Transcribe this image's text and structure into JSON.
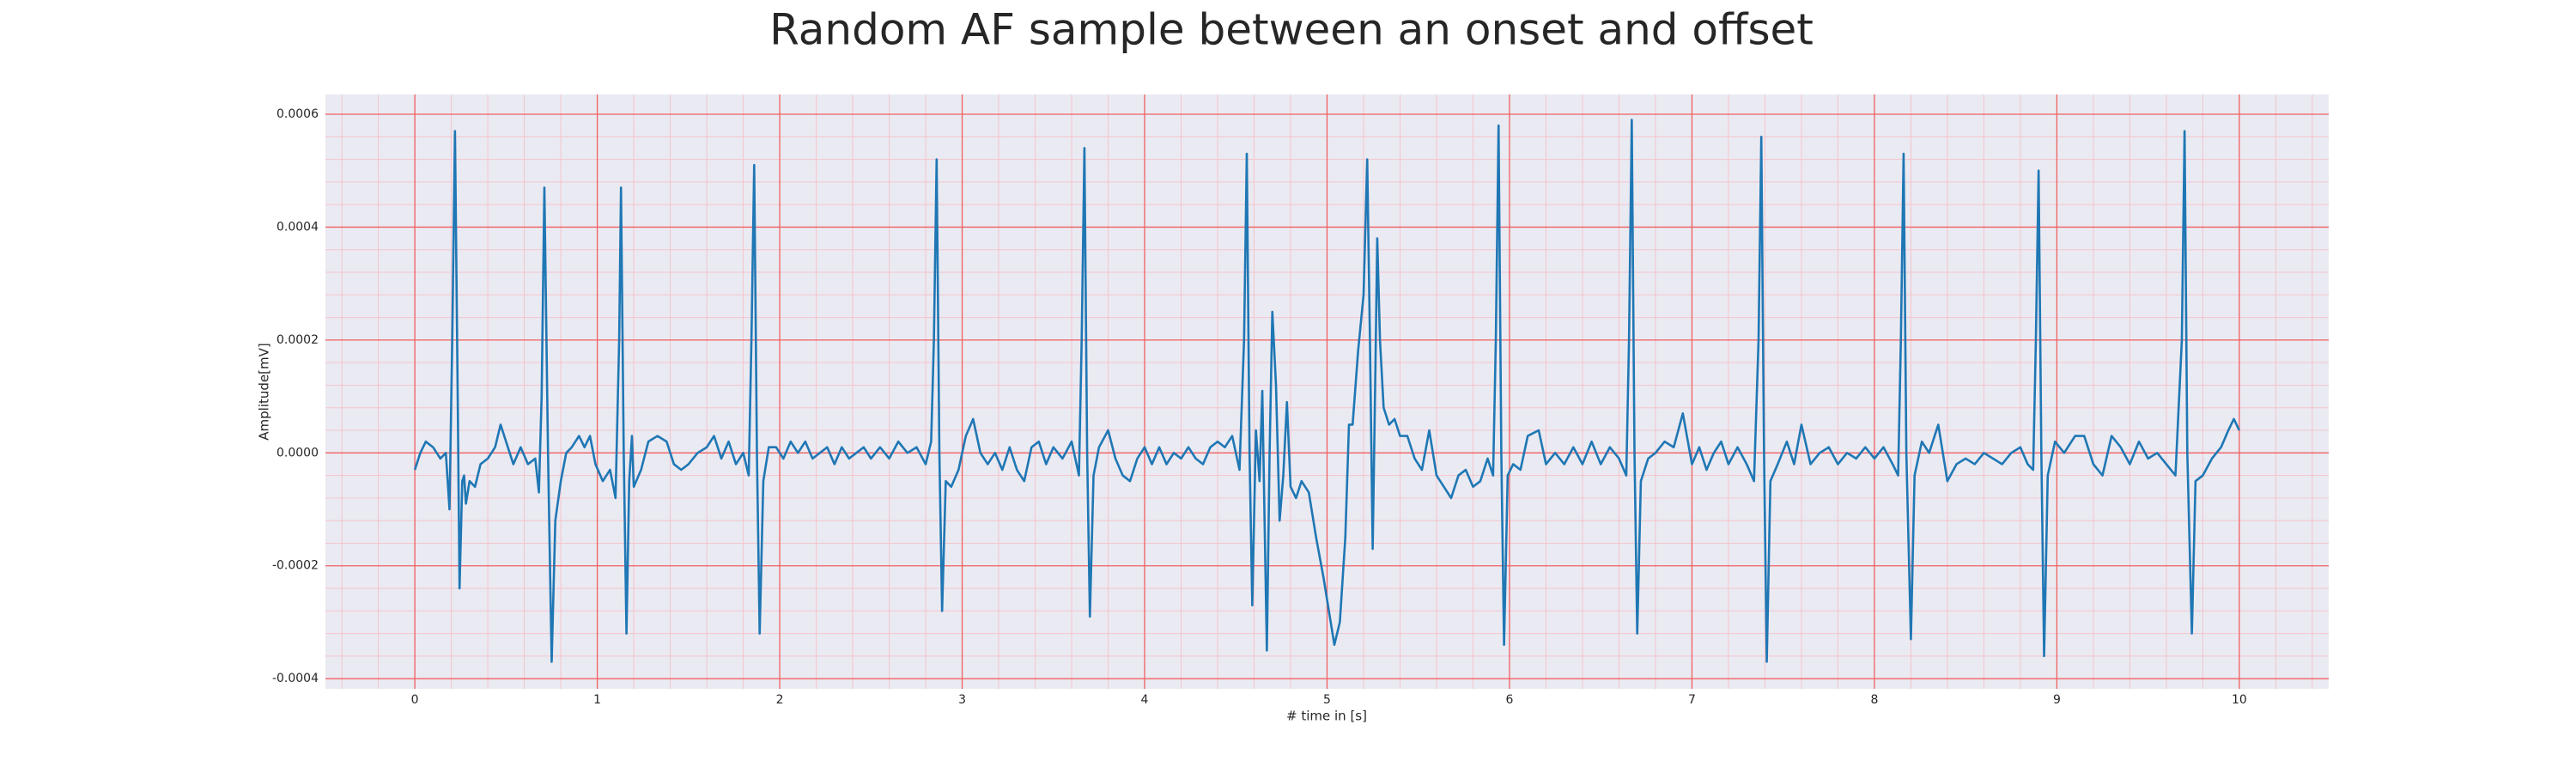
{
  "chart_data": {
    "type": "line",
    "title": "Random AF sample between an onset and offset",
    "xlabel": "# time in [s]",
    "ylabel": "Amplitude[mV]",
    "xlim": [
      -0.49,
      10.49
    ],
    "ylim": [
      -0.000418,
      0.000635
    ],
    "xticks": [
      0,
      1,
      2,
      3,
      4,
      5,
      6,
      7,
      8,
      9,
      10
    ],
    "yticks": [
      -0.0004,
      -0.0002,
      {
        "value": 0,
        "label": "0.0000"
      },
      0.0002,
      0.0004,
      0.0006
    ],
    "xminorticks": [
      -0.4,
      -0.2,
      0.2,
      0.4,
      0.6,
      0.8,
      1.2,
      1.4,
      1.6,
      1.8,
      2.2,
      2.4,
      2.6,
      2.8,
      3.2,
      3.4,
      3.6,
      3.8,
      4.2,
      4.4,
      4.6,
      4.8,
      5.2,
      5.4,
      5.6,
      5.8,
      6.2,
      6.4,
      6.6,
      6.8,
      7.2,
      7.4,
      7.6,
      7.8,
      8.2,
      8.4,
      8.6,
      8.8,
      9.2,
      9.4,
      9.6,
      9.8,
      10.2,
      10.4
    ],
    "yminorticks": [
      -0.00036,
      -0.00032,
      -0.00028,
      -0.00024,
      -0.00016,
      -0.00012,
      -8e-05,
      -4e-05,
      4e-05,
      8e-05,
      0.00012,
      0.00016,
      0.00024,
      0.00028,
      0.00032,
      0.00036,
      0.00044,
      0.00048,
      0.00052,
      0.00056
    ],
    "grid": true,
    "grid_color": "#f06060",
    "minor_grid_color": "#f4c4cc",
    "background": "#eaeaf2",
    "color": "#1f77b4",
    "x": [
      0,
      0.03,
      0.06,
      0.1,
      0.14,
      0.17,
      0.19,
      0.205,
      0.22,
      0.235,
      0.245,
      0.26,
      0.27,
      0.28,
      0.3,
      0.33,
      0.36,
      0.4,
      0.44,
      0.47,
      0.5,
      0.54,
      0.58,
      0.62,
      0.66,
      0.68,
      0.695,
      0.71,
      0.73,
      0.75,
      0.77,
      0.8,
      0.83,
      0.86,
      0.9,
      0.93,
      0.96,
      0.99,
      1.03,
      1.07,
      1.1,
      1.12,
      1.13,
      1.145,
      1.16,
      1.175,
      1.19,
      1.2,
      1.24,
      1.28,
      1.33,
      1.38,
      1.42,
      1.46,
      1.5,
      1.55,
      1.6,
      1.64,
      1.68,
      1.72,
      1.76,
      1.8,
      1.83,
      1.845,
      1.86,
      1.875,
      1.89,
      1.91,
      1.94,
      1.98,
      2.02,
      2.06,
      2.1,
      2.14,
      2.18,
      2.22,
      2.26,
      2.3,
      2.34,
      2.38,
      2.42,
      2.46,
      2.5,
      2.55,
      2.6,
      2.65,
      2.7,
      2.75,
      2.8,
      2.83,
      2.845,
      2.86,
      2.875,
      2.89,
      2.91,
      2.94,
      2.98,
      3.02,
      3.06,
      3.1,
      3.14,
      3.18,
      3.22,
      3.26,
      3.3,
      3.34,
      3.38,
      3.42,
      3.46,
      3.5,
      3.55,
      3.6,
      3.64,
      3.655,
      3.67,
      3.685,
      3.7,
      3.72,
      3.75,
      3.8,
      3.84,
      3.88,
      3.92,
      3.96,
      4.0,
      4.04,
      4.08,
      4.12,
      4.16,
      4.2,
      4.24,
      4.28,
      4.32,
      4.36,
      4.4,
      4.44,
      4.48,
      4.52,
      4.545,
      4.56,
      4.575,
      4.59,
      4.61,
      4.63,
      4.645,
      4.67,
      4.685,
      4.7,
      4.72,
      4.74,
      4.76,
      4.78,
      4.8,
      4.83,
      4.86,
      4.9,
      4.94,
      4.98,
      5.01,
      5.04,
      5.07,
      5.1,
      5.12,
      5.14,
      5.17,
      5.2,
      5.22,
      5.235,
      5.25,
      5.265,
      5.275,
      5.29,
      5.31,
      5.34,
      5.37,
      5.4,
      5.44,
      5.48,
      5.52,
      5.56,
      5.6,
      5.64,
      5.68,
      5.72,
      5.76,
      5.8,
      5.84,
      5.88,
      5.91,
      5.925,
      5.94,
      5.955,
      5.97,
      5.99,
      6.02,
      6.06,
      6.1,
      6.16,
      6.2,
      6.25,
      6.3,
      6.35,
      6.4,
      6.45,
      6.5,
      6.55,
      6.6,
      6.64,
      6.655,
      6.67,
      6.685,
      6.7,
      6.72,
      6.76,
      6.8,
      6.85,
      6.9,
      6.95,
      7.0,
      7.04,
      7.08,
      7.12,
      7.16,
      7.2,
      7.25,
      7.3,
      7.34,
      7.365,
      7.38,
      7.395,
      7.41,
      7.43,
      7.47,
      7.52,
      7.56,
      7.6,
      7.65,
      7.7,
      7.75,
      7.8,
      7.85,
      7.9,
      7.95,
      8.0,
      8.05,
      8.1,
      8.13,
      8.145,
      8.16,
      8.175,
      8.2,
      8.22,
      8.26,
      8.3,
      8.35,
      8.4,
      8.45,
      8.5,
      8.55,
      8.6,
      8.65,
      8.7,
      8.75,
      8.8,
      8.84,
      8.87,
      8.885,
      8.9,
      8.915,
      8.93,
      8.95,
      8.99,
      9.04,
      9.1,
      9.15,
      9.2,
      9.25,
      9.3,
      9.35,
      9.4,
      9.45,
      9.5,
      9.55,
      9.6,
      9.65,
      9.685,
      9.7,
      9.715,
      9.74,
      9.76,
      9.8,
      9.85,
      9.9,
      9.94,
      9.97,
      10.0
    ],
    "values": [
      -3e-05,
      0,
      2e-05,
      1e-05,
      -1e-05,
      0,
      -0.0001,
      0.0002,
      0.00057,
      0.0001,
      -0.00024,
      -5e-05,
      -4e-05,
      -9e-05,
      -5e-05,
      -6e-05,
      -2e-05,
      -1e-05,
      1e-05,
      5e-05,
      2e-05,
      -2e-05,
      1e-05,
      -2e-05,
      -1e-05,
      -7e-05,
      0.0001,
      0.00047,
      0,
      -0.00037,
      -0.00012,
      -5e-05,
      0,
      1e-05,
      3e-05,
      1e-05,
      3e-05,
      -2e-05,
      -5e-05,
      -3e-05,
      -8e-05,
      0.0002,
      0.00047,
      0,
      -0.00032,
      -5e-05,
      3e-05,
      -6e-05,
      -3e-05,
      2e-05,
      3e-05,
      2e-05,
      -2e-05,
      -3e-05,
      -2e-05,
      0,
      1e-05,
      3e-05,
      -1e-05,
      2e-05,
      -2e-05,
      0,
      -4e-05,
      0.0002,
      0.00051,
      0,
      -0.00032,
      -5e-05,
      1e-05,
      1e-05,
      -1e-05,
      2e-05,
      0,
      2e-05,
      -1e-05,
      0,
      1e-05,
      -2e-05,
      1e-05,
      -1e-05,
      0,
      1e-05,
      -1e-05,
      1e-05,
      -1e-05,
      2e-05,
      0,
      1e-05,
      -2e-05,
      2e-05,
      0.0002,
      0.00052,
      0,
      -0.00028,
      -5e-05,
      -6e-05,
      -3e-05,
      3e-05,
      6e-05,
      0,
      -2e-05,
      0,
      -3e-05,
      1e-05,
      -3e-05,
      -5e-05,
      1e-05,
      2e-05,
      -2e-05,
      1e-05,
      -1e-05,
      2e-05,
      -4e-05,
      0.0002,
      0.00054,
      0,
      -0.00029,
      -4e-05,
      1e-05,
      4e-05,
      -1e-05,
      -4e-05,
      -5e-05,
      -1e-05,
      1e-05,
      -2e-05,
      1e-05,
      -2e-05,
      0,
      -1e-05,
      1e-05,
      -1e-05,
      -2e-05,
      1e-05,
      2e-05,
      1e-05,
      3e-05,
      -3e-05,
      0.0002,
      0.00053,
      0,
      -0.00027,
      4e-05,
      -5e-05,
      0.00011,
      -0.00035,
      0,
      0.00025,
      0.00012,
      -0.00012,
      -4e-05,
      9e-05,
      -6e-05,
      -8e-05,
      -5e-05,
      -7e-05,
      -0.00015,
      -0.00022,
      -0.00028,
      -0.00034,
      -0.0003,
      -0.00015,
      5e-05,
      5e-05,
      0.00018,
      0.00028,
      0.00052,
      0.0002,
      -0.00017,
      0.00015,
      0.00038,
      0.0002,
      8e-05,
      5e-05,
      6e-05,
      3e-05,
      3e-05,
      -1e-05,
      -3e-05,
      4e-05,
      -4e-05,
      -6e-05,
      -8e-05,
      -4e-05,
      -3e-05,
      -6e-05,
      -5e-05,
      -1e-05,
      -4e-05,
      0.0002,
      0.00058,
      0,
      -0.00034,
      -4e-05,
      -2e-05,
      -3e-05,
      3e-05,
      4e-05,
      -2e-05,
      0,
      -2e-05,
      1e-05,
      -2e-05,
      2e-05,
      -2e-05,
      1e-05,
      -1e-05,
      -4e-05,
      0.0002,
      0.00059,
      0,
      -0.00032,
      -5e-05,
      -1e-05,
      0,
      2e-05,
      1e-05,
      7e-05,
      -2e-05,
      1e-05,
      -3e-05,
      0,
      2e-05,
      -2e-05,
      1e-05,
      -2e-05,
      -5e-05,
      0.0002,
      0.00056,
      0,
      -0.00037,
      -5e-05,
      -2e-05,
      2e-05,
      -2e-05,
      5e-05,
      -2e-05,
      0,
      1e-05,
      -2e-05,
      0,
      -1e-05,
      1e-05,
      -1e-05,
      1e-05,
      -2e-05,
      -4e-05,
      0.0002,
      0.00053,
      0,
      -0.00033,
      -4e-05,
      2e-05,
      0,
      5e-05,
      -5e-05,
      -2e-05,
      -1e-05,
      -2e-05,
      0,
      -1e-05,
      -2e-05,
      0,
      1e-05,
      -2e-05,
      -3e-05,
      0.0002,
      0.0005,
      0,
      -0.00036,
      -4e-05,
      2e-05,
      0,
      3e-05,
      3e-05,
      -2e-05,
      -4e-05,
      3e-05,
      1e-05,
      -2e-05,
      2e-05,
      -1e-05,
      0,
      -2e-05,
      -4e-05,
      0.0002,
      0.00057,
      0,
      -0.00032,
      -5e-05,
      -4e-05,
      -1e-05,
      1e-05,
      4e-05,
      6e-05,
      4e-05
    ]
  }
}
